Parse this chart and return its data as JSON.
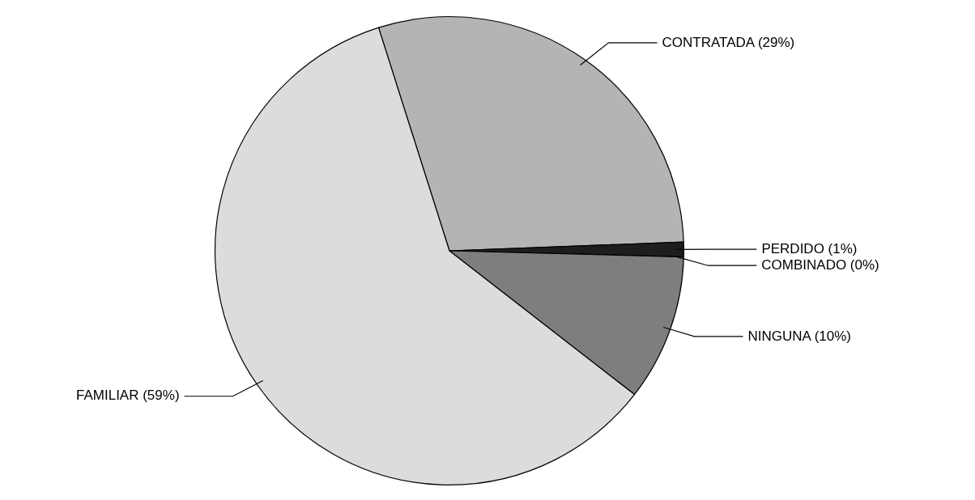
{
  "chart_data": {
    "type": "pie",
    "categories": [
      "CONTRATADA (29%)",
      "PERDIDO (1%)",
      "COMBINADO (0%)",
      "NINGUNA (10%)",
      "FAMILIAR (59%)"
    ],
    "values": [
      29,
      1,
      0,
      10,
      59
    ],
    "colors": [
      "#b4b4b4",
      "#1e1e1e",
      "#5a5a5a",
      "#7e7e7e",
      "#dcdcdc"
    ],
    "legend": false
  }
}
